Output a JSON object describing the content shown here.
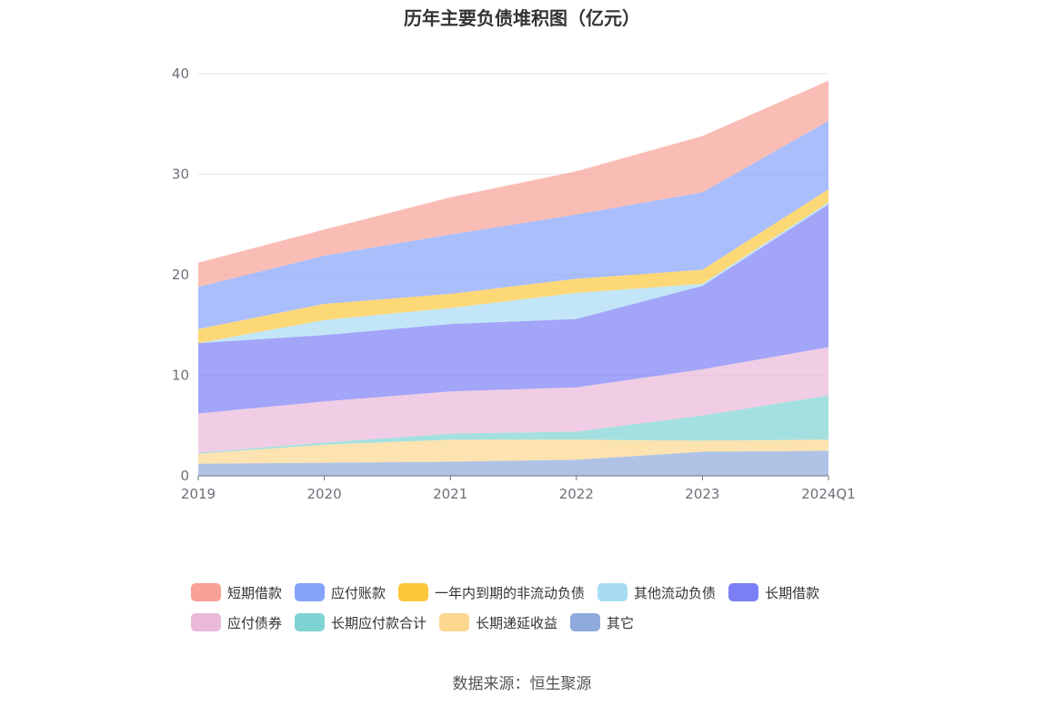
{
  "title": "历年主要负债堆积图（亿元）",
  "source": "数据来源：恒生聚源",
  "chart_data": {
    "type": "area",
    "stacked": true,
    "title": "历年主要负债堆积图（亿元）",
    "x": [
      "2019",
      "2020",
      "2021",
      "2022",
      "2023",
      "2024Q1"
    ],
    "ylim": [
      0,
      40
    ],
    "yticks": [
      "0",
      "10",
      "20",
      "30",
      "40"
    ],
    "grid": true,
    "legend_position": "bottom",
    "series": [
      {
        "name": "其它",
        "color": "#8faadc",
        "values": [
          1.2,
          1.3,
          1.4,
          1.6,
          2.4,
          2.5
        ]
      },
      {
        "name": "长期递延收益",
        "color": "#fbd78f",
        "values": [
          1.0,
          1.8,
          2.2,
          2.0,
          1.1,
          1.1
        ]
      },
      {
        "name": "长期应付款合计",
        "color": "#7fd3d3",
        "values": [
          0.1,
          0.2,
          0.6,
          0.8,
          2.5,
          4.4
        ]
      },
      {
        "name": "应付债券",
        "color": "#eab8d8",
        "values": [
          3.9,
          4.1,
          4.2,
          4.4,
          4.6,
          4.8
        ]
      },
      {
        "name": "长期借款",
        "color": "#7b7ff5",
        "values": [
          7.0,
          6.6,
          6.7,
          6.8,
          8.3,
          14.2
        ]
      },
      {
        "name": "其他流动负债",
        "color": "#a8dcf5",
        "values": [
          0.0,
          1.5,
          1.6,
          2.6,
          0.2,
          0.2
        ]
      },
      {
        "name": "一年内到期的非流动负债",
        "color": "#fcc83c",
        "values": [
          1.4,
          1.6,
          1.4,
          1.4,
          1.4,
          1.3
        ]
      },
      {
        "name": "应付账款",
        "color": "#86a3fa",
        "values": [
          4.2,
          4.8,
          5.9,
          6.4,
          7.7,
          6.8
        ]
      },
      {
        "name": "短期借款",
        "color": "#f8a196",
        "values": [
          2.4,
          2.6,
          3.7,
          4.3,
          5.6,
          4.0
        ]
      }
    ]
  },
  "legend": {
    "rows": [
      [
        "短期借款",
        "应付账款",
        "一年内到期的非流动负债",
        "其他流动负债",
        "长期借款"
      ],
      [
        "应付债券",
        "长期应付款合计",
        "长期递延收益",
        "其它"
      ]
    ]
  }
}
